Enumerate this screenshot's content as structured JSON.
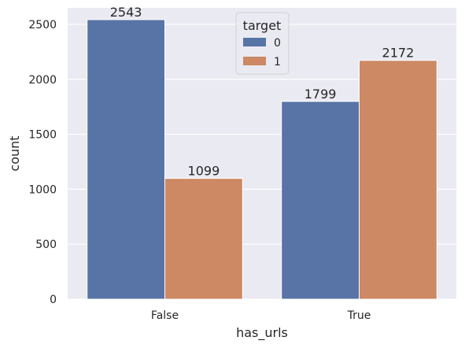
{
  "chart_data": {
    "type": "bar",
    "categories": [
      "False",
      "True"
    ],
    "series": [
      {
        "name": "0",
        "values": [
          2543,
          1799
        ],
        "color": "#5874a6"
      },
      {
        "name": "1",
        "values": [
          1099,
          2172
        ],
        "color": "#cc8963"
      }
    ],
    "xlabel": "has_urls",
    "ylabel": "count",
    "ylim": [
      0,
      2650
    ],
    "yticks": [
      0,
      500,
      1000,
      1500,
      2000,
      2500
    ],
    "grid": true,
    "legend": {
      "title": "target",
      "position": "top-center"
    },
    "background": "#eaeaf2"
  }
}
